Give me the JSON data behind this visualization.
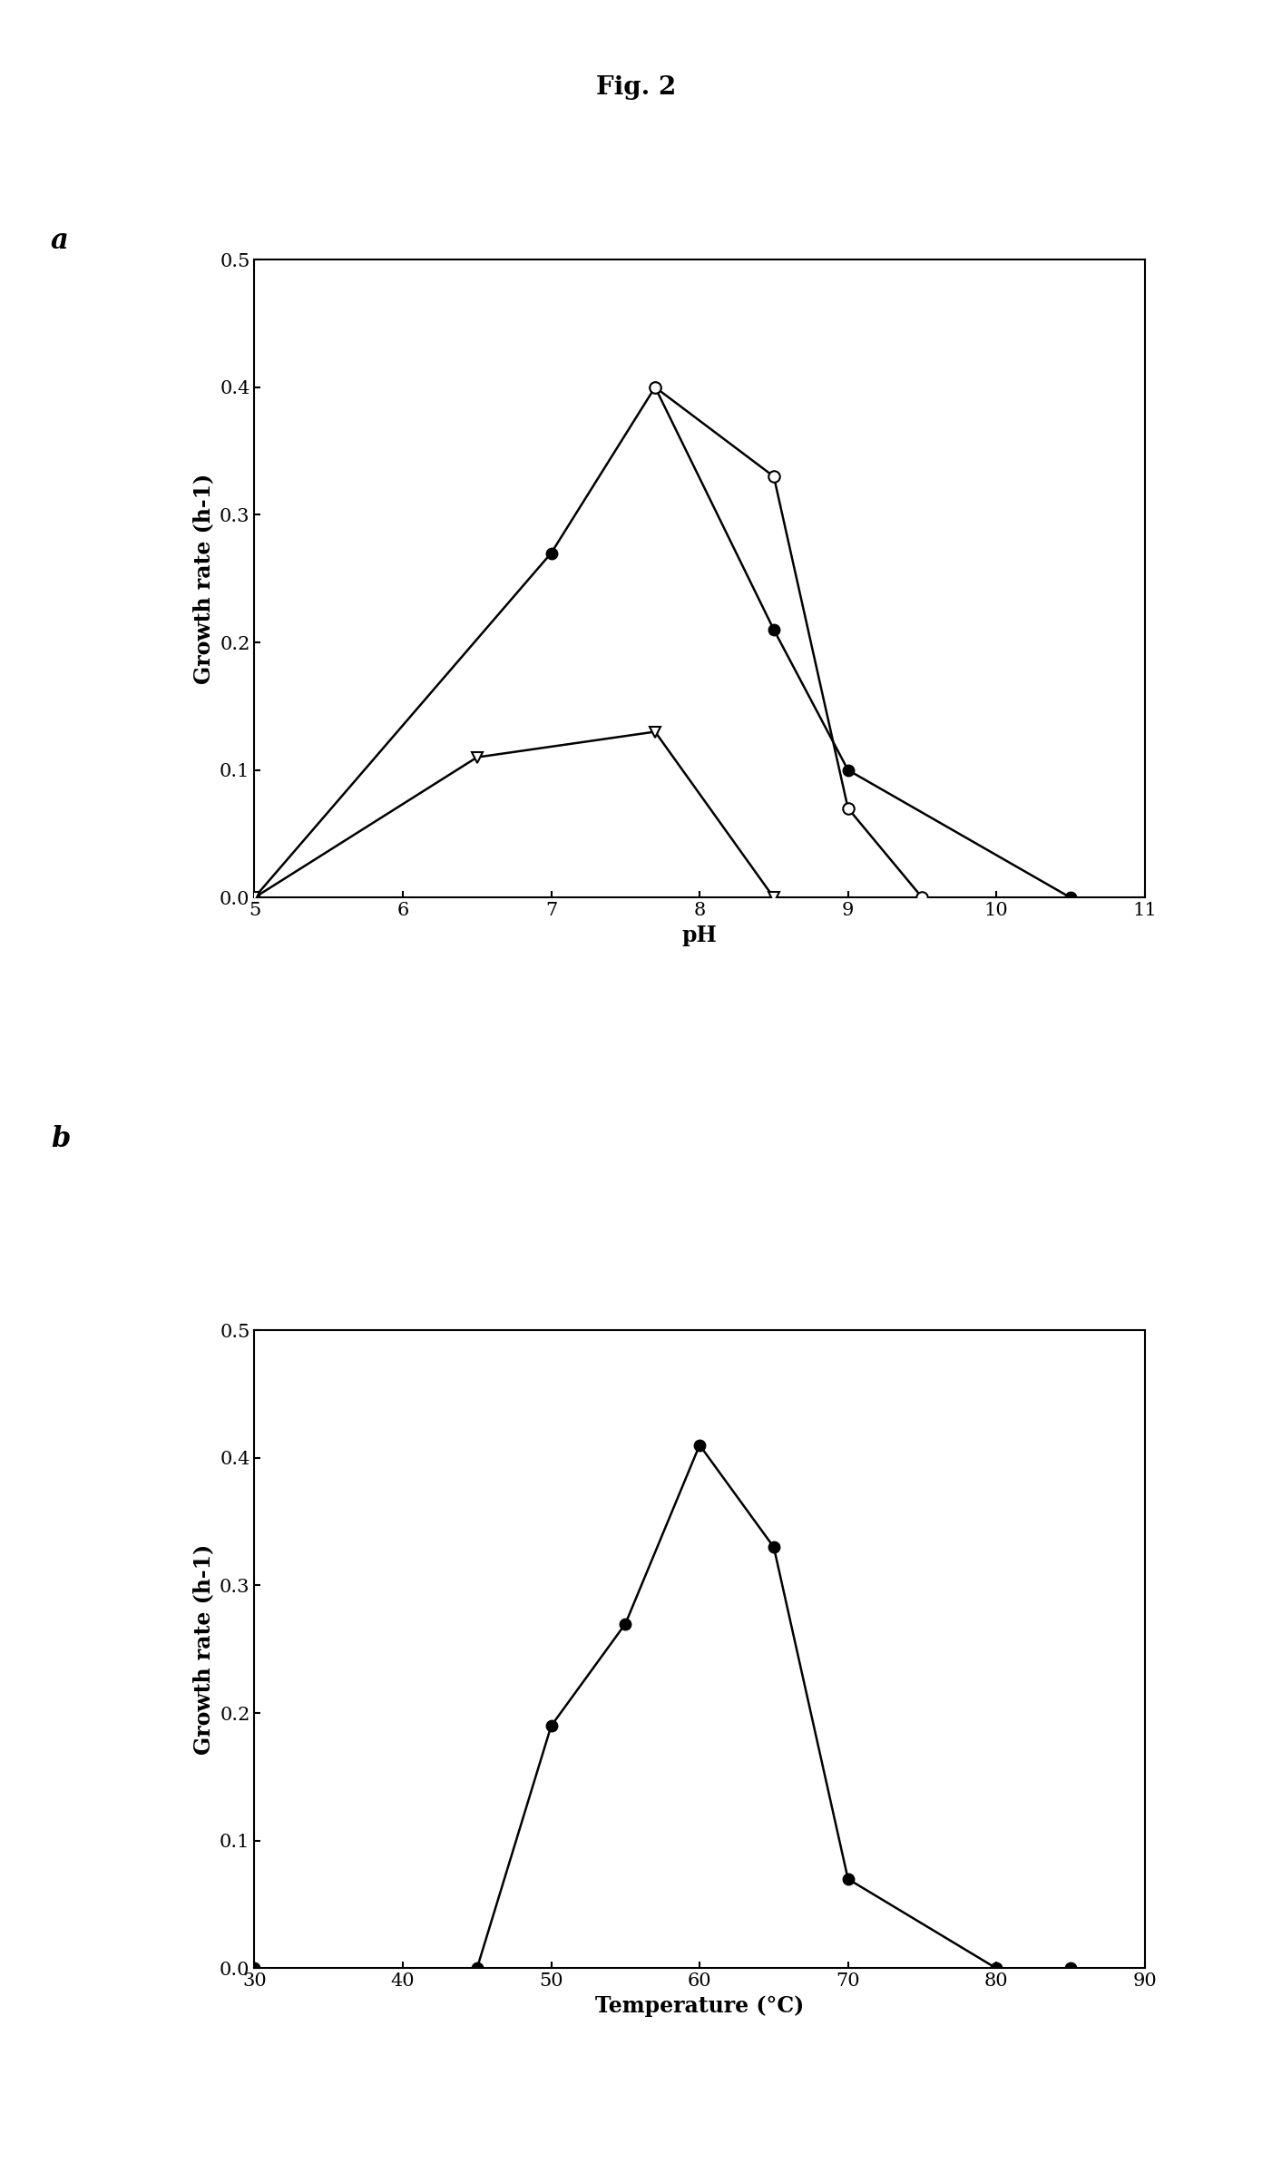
{
  "fig_title": "Fig. 2",
  "panel_a": {
    "label": "a",
    "xlabel": "pH",
    "ylabel": "Growth rate (h-1)",
    "xlim": [
      5,
      11
    ],
    "ylim": [
      0.0,
      0.5
    ],
    "xticks": [
      5,
      6,
      7,
      8,
      9,
      10,
      11
    ],
    "yticks": [
      0.0,
      0.1,
      0.2,
      0.3,
      0.4,
      0.5
    ],
    "series": [
      {
        "name": "filled_circle",
        "x": [
          5.0,
          7.0,
          7.7,
          8.5,
          9.0,
          10.5
        ],
        "y": [
          0.0,
          0.27,
          0.4,
          0.21,
          0.1,
          0.0
        ],
        "marker": "o",
        "filled": true,
        "color": "black"
      },
      {
        "name": "open_circle",
        "x": [
          7.7,
          8.5,
          9.0,
          9.5
        ],
        "y": [
          0.4,
          0.33,
          0.07,
          0.0
        ],
        "marker": "o",
        "filled": false,
        "color": "black"
      },
      {
        "name": "open_triangle_down",
        "x": [
          5.0,
          6.5,
          7.7,
          8.5
        ],
        "y": [
          0.0,
          0.11,
          0.13,
          0.0
        ],
        "marker": "v",
        "filled": false,
        "color": "black"
      }
    ]
  },
  "panel_b": {
    "label": "b",
    "xlabel": "Temperature (°C)",
    "ylabel": "Growth rate (h-1)",
    "xlim": [
      30,
      90
    ],
    "ylim": [
      0.0,
      0.5
    ],
    "xticks": [
      30,
      40,
      50,
      60,
      70,
      80,
      90
    ],
    "yticks": [
      0.0,
      0.1,
      0.2,
      0.3,
      0.4,
      0.5
    ],
    "series": [
      {
        "name": "filled_circle",
        "x": [
          30,
          45,
          50,
          55,
          60,
          65,
          70,
          80,
          85
        ],
        "y": [
          0.0,
          0.0,
          0.19,
          0.27,
          0.41,
          0.33,
          0.07,
          0.0,
          0.0
        ],
        "marker": "o",
        "filled": true,
        "color": "black"
      }
    ]
  },
  "background_color": "white",
  "font_family": "serif",
  "title_fontsize": 20,
  "label_fontsize": 22,
  "axis_label_fontsize": 17,
  "tick_fontsize": 15,
  "markersize": 9,
  "linewidth": 1.8
}
